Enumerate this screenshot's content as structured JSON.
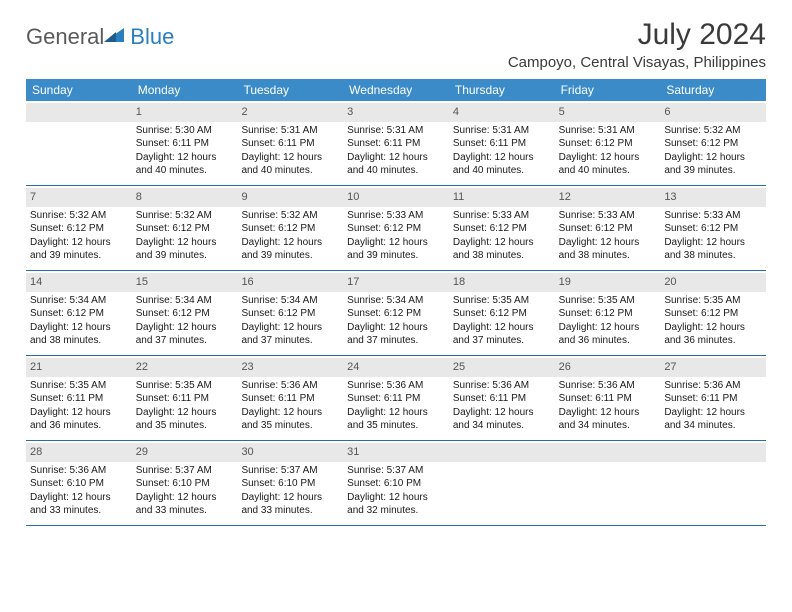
{
  "logo": {
    "text1": "General",
    "text2": "Blue"
  },
  "title": "July 2024",
  "location": "Campoyo, Central Visayas, Philippines",
  "weekdays": [
    "Sunday",
    "Monday",
    "Tuesday",
    "Wednesday",
    "Thursday",
    "Friday",
    "Saturday"
  ],
  "colors": {
    "header_bg": "#3b8bc8",
    "header_text": "#ffffff",
    "row_border": "#2a6ca8",
    "daynum_bg": "#e8e8e8",
    "daynum_text": "#555555",
    "logo_gray": "#5a5a5a",
    "logo_blue": "#2a7fbf"
  },
  "weeks": [
    [
      {
        "n": "",
        "empty": true
      },
      {
        "n": "1",
        "sr": "Sunrise: 5:30 AM",
        "ss": "Sunset: 6:11 PM",
        "dl": "Daylight: 12 hours and 40 minutes."
      },
      {
        "n": "2",
        "sr": "Sunrise: 5:31 AM",
        "ss": "Sunset: 6:11 PM",
        "dl": "Daylight: 12 hours and 40 minutes."
      },
      {
        "n": "3",
        "sr": "Sunrise: 5:31 AM",
        "ss": "Sunset: 6:11 PM",
        "dl": "Daylight: 12 hours and 40 minutes."
      },
      {
        "n": "4",
        "sr": "Sunrise: 5:31 AM",
        "ss": "Sunset: 6:11 PM",
        "dl": "Daylight: 12 hours and 40 minutes."
      },
      {
        "n": "5",
        "sr": "Sunrise: 5:31 AM",
        "ss": "Sunset: 6:12 PM",
        "dl": "Daylight: 12 hours and 40 minutes."
      },
      {
        "n": "6",
        "sr": "Sunrise: 5:32 AM",
        "ss": "Sunset: 6:12 PM",
        "dl": "Daylight: 12 hours and 39 minutes."
      }
    ],
    [
      {
        "n": "7",
        "sr": "Sunrise: 5:32 AM",
        "ss": "Sunset: 6:12 PM",
        "dl": "Daylight: 12 hours and 39 minutes."
      },
      {
        "n": "8",
        "sr": "Sunrise: 5:32 AM",
        "ss": "Sunset: 6:12 PM",
        "dl": "Daylight: 12 hours and 39 minutes."
      },
      {
        "n": "9",
        "sr": "Sunrise: 5:32 AM",
        "ss": "Sunset: 6:12 PM",
        "dl": "Daylight: 12 hours and 39 minutes."
      },
      {
        "n": "10",
        "sr": "Sunrise: 5:33 AM",
        "ss": "Sunset: 6:12 PM",
        "dl": "Daylight: 12 hours and 39 minutes."
      },
      {
        "n": "11",
        "sr": "Sunrise: 5:33 AM",
        "ss": "Sunset: 6:12 PM",
        "dl": "Daylight: 12 hours and 38 minutes."
      },
      {
        "n": "12",
        "sr": "Sunrise: 5:33 AM",
        "ss": "Sunset: 6:12 PM",
        "dl": "Daylight: 12 hours and 38 minutes."
      },
      {
        "n": "13",
        "sr": "Sunrise: 5:33 AM",
        "ss": "Sunset: 6:12 PM",
        "dl": "Daylight: 12 hours and 38 minutes."
      }
    ],
    [
      {
        "n": "14",
        "sr": "Sunrise: 5:34 AM",
        "ss": "Sunset: 6:12 PM",
        "dl": "Daylight: 12 hours and 38 minutes."
      },
      {
        "n": "15",
        "sr": "Sunrise: 5:34 AM",
        "ss": "Sunset: 6:12 PM",
        "dl": "Daylight: 12 hours and 37 minutes."
      },
      {
        "n": "16",
        "sr": "Sunrise: 5:34 AM",
        "ss": "Sunset: 6:12 PM",
        "dl": "Daylight: 12 hours and 37 minutes."
      },
      {
        "n": "17",
        "sr": "Sunrise: 5:34 AM",
        "ss": "Sunset: 6:12 PM",
        "dl": "Daylight: 12 hours and 37 minutes."
      },
      {
        "n": "18",
        "sr": "Sunrise: 5:35 AM",
        "ss": "Sunset: 6:12 PM",
        "dl": "Daylight: 12 hours and 37 minutes."
      },
      {
        "n": "19",
        "sr": "Sunrise: 5:35 AM",
        "ss": "Sunset: 6:12 PM",
        "dl": "Daylight: 12 hours and 36 minutes."
      },
      {
        "n": "20",
        "sr": "Sunrise: 5:35 AM",
        "ss": "Sunset: 6:12 PM",
        "dl": "Daylight: 12 hours and 36 minutes."
      }
    ],
    [
      {
        "n": "21",
        "sr": "Sunrise: 5:35 AM",
        "ss": "Sunset: 6:11 PM",
        "dl": "Daylight: 12 hours and 36 minutes."
      },
      {
        "n": "22",
        "sr": "Sunrise: 5:35 AM",
        "ss": "Sunset: 6:11 PM",
        "dl": "Daylight: 12 hours and 35 minutes."
      },
      {
        "n": "23",
        "sr": "Sunrise: 5:36 AM",
        "ss": "Sunset: 6:11 PM",
        "dl": "Daylight: 12 hours and 35 minutes."
      },
      {
        "n": "24",
        "sr": "Sunrise: 5:36 AM",
        "ss": "Sunset: 6:11 PM",
        "dl": "Daylight: 12 hours and 35 minutes."
      },
      {
        "n": "25",
        "sr": "Sunrise: 5:36 AM",
        "ss": "Sunset: 6:11 PM",
        "dl": "Daylight: 12 hours and 34 minutes."
      },
      {
        "n": "26",
        "sr": "Sunrise: 5:36 AM",
        "ss": "Sunset: 6:11 PM",
        "dl": "Daylight: 12 hours and 34 minutes."
      },
      {
        "n": "27",
        "sr": "Sunrise: 5:36 AM",
        "ss": "Sunset: 6:11 PM",
        "dl": "Daylight: 12 hours and 34 minutes."
      }
    ],
    [
      {
        "n": "28",
        "sr": "Sunrise: 5:36 AM",
        "ss": "Sunset: 6:10 PM",
        "dl": "Daylight: 12 hours and 33 minutes."
      },
      {
        "n": "29",
        "sr": "Sunrise: 5:37 AM",
        "ss": "Sunset: 6:10 PM",
        "dl": "Daylight: 12 hours and 33 minutes."
      },
      {
        "n": "30",
        "sr": "Sunrise: 5:37 AM",
        "ss": "Sunset: 6:10 PM",
        "dl": "Daylight: 12 hours and 33 minutes."
      },
      {
        "n": "31",
        "sr": "Sunrise: 5:37 AM",
        "ss": "Sunset: 6:10 PM",
        "dl": "Daylight: 12 hours and 32 minutes."
      },
      {
        "n": "",
        "empty": true
      },
      {
        "n": "",
        "empty": true
      },
      {
        "n": "",
        "empty": true
      }
    ]
  ]
}
